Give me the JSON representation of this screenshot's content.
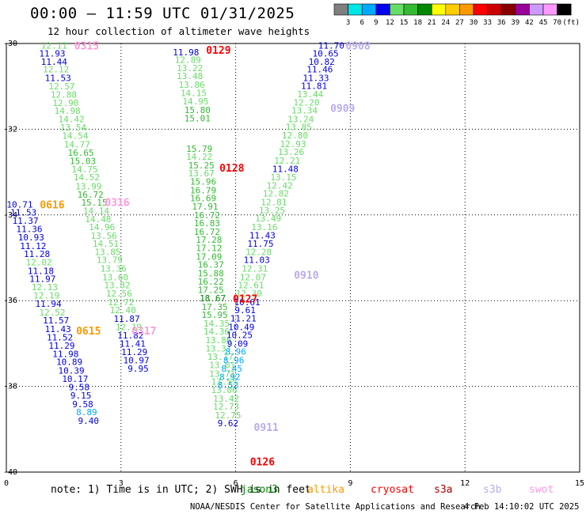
{
  "header": {
    "title": "00:00 — 11:59 UTC 01/31/2025",
    "subtitle": "12 hour collection of altimeter wave heights"
  },
  "colorbar": {
    "labels": [
      "3",
      "6",
      "9",
      "12",
      "15",
      "18",
      "21",
      "24",
      "27",
      "30",
      "33",
      "36",
      "39",
      "42",
      "45",
      "70",
      "(ft)"
    ],
    "colors": [
      "#7f7f7f",
      "#00e5e5",
      "#00aaff",
      "#0000ee",
      "#66dd66",
      "#33bb33",
      "#008800",
      "#ffff00",
      "#ffcc00",
      "#ff9900",
      "#ff0000",
      "#cc0000",
      "#880000",
      "#990099",
      "#cc99ff",
      "#ff99ff",
      "#000000"
    ]
  },
  "note": "note: 1) Time is in UTC; 2) SWH is in feet",
  "legend": [
    {
      "name": "jason3",
      "color": "#008800"
    },
    {
      "name": "altika",
      "color": "#ff9900"
    },
    {
      "name": "cryosat",
      "color": "#ff0000"
    },
    {
      "name": "s3a",
      "color": "#aa0000"
    },
    {
      "name": "s3b",
      "color": "#bbaaee"
    },
    {
      "name": "swot",
      "color": "#ff99dd"
    }
  ],
  "footer": "NOAA/NESDIS Center for Satellite Applications and Research",
  "timestamp": "4 Feb 14:10:02 UTC 2025",
  "chart_data": {
    "type": "scatter",
    "title": "00:00 — 11:59 UTC 01/31/2025",
    "xlim": [
      0,
      15
    ],
    "ylim": [
      -40,
      -30
    ],
    "x_ticks": [
      0,
      3,
      6,
      9,
      12,
      15
    ],
    "y_ticks": [
      -30,
      -32,
      -34,
      -36,
      -38,
      -40
    ],
    "y_tick_labels": [
      "-30",
      "-32",
      "-34",
      "-36",
      "-38",
      "-40"
    ],
    "grid": true,
    "color_stops": [
      {
        "max": 3,
        "color": "#7f7f7f"
      },
      {
        "max": 6,
        "color": "#00e5e5"
      },
      {
        "max": 9,
        "color": "#00aaff"
      },
      {
        "max": 12,
        "color": "#0000ee"
      },
      {
        "max": 15,
        "color": "#66dd66"
      },
      {
        "max": 18,
        "color": "#33bb33"
      },
      {
        "max": 21,
        "color": "#008800"
      }
    ],
    "track_labels": [
      {
        "text": "0315",
        "x": 2.1,
        "y": -30.05,
        "color": "#ff99dd"
      },
      {
        "text": "0129",
        "x": 5.55,
        "y": -30.15,
        "color": "#ff0000"
      },
      {
        "text": "0908",
        "x": 9.2,
        "y": -30.05,
        "color": "#bbaaee"
      },
      {
        "text": "0909",
        "x": 8.8,
        "y": -31.5,
        "color": "#bbaaee"
      },
      {
        "text": "0128",
        "x": 5.9,
        "y": -32.9,
        "color": "#ff0000"
      },
      {
        "text": "0616",
        "x": 1.2,
        "y": -33.75,
        "color": "#ff9900"
      },
      {
        "text": "0316",
        "x": 2.9,
        "y": -33.7,
        "color": "#ff99dd"
      },
      {
        "text": "0910",
        "x": 7.85,
        "y": -35.4,
        "color": "#bbaaee"
      },
      {
        "text": "0127",
        "x": 6.25,
        "y": -35.95,
        "color": "#ff0000"
      },
      {
        "text": "0615",
        "x": 2.15,
        "y": -36.7,
        "color": "#ff9900"
      },
      {
        "text": "0317",
        "x": 3.6,
        "y": -36.7,
        "color": "#ff99dd"
      },
      {
        "text": "0911",
        "x": 6.8,
        "y": -38.95,
        "color": "#bbaaee"
      },
      {
        "text": "0126",
        "x": 6.7,
        "y": -39.75,
        "color": "#ff0000"
      }
    ],
    "series": [
      {
        "track": "0315",
        "points": [
          [
            1.25,
            -30.05,
            12.11
          ],
          [
            1.2,
            -30.23,
            11.93
          ],
          [
            1.25,
            -30.42,
            11.44
          ],
          [
            1.3,
            -30.6,
            12.12
          ],
          [
            1.35,
            -30.8,
            11.53
          ],
          [
            1.45,
            -31.0,
            12.57
          ],
          [
            1.5,
            -31.19,
            12.88
          ],
          [
            1.55,
            -31.38,
            12.9
          ],
          [
            1.6,
            -31.57,
            14.98
          ],
          [
            1.7,
            -31.76,
            14.42
          ],
          [
            1.75,
            -31.96,
            13.54
          ],
          [
            1.8,
            -32.15,
            14.54
          ],
          [
            1.85,
            -32.35,
            14.77
          ],
          [
            1.95,
            -32.55,
            16.65
          ],
          [
            2.0,
            -32.74,
            15.03
          ],
          [
            2.05,
            -32.93,
            14.75
          ],
          [
            2.1,
            -33.12,
            14.52
          ],
          [
            2.15,
            -33.33,
            13.99
          ],
          [
            2.2,
            -33.52,
            16.72
          ],
          [
            2.3,
            -33.71,
            15.15
          ],
          [
            2.35,
            -33.9,
            14.14
          ],
          [
            2.4,
            -34.1,
            14.48
          ],
          [
            2.5,
            -34.28,
            14.96
          ],
          [
            2.55,
            -34.48,
            13.56
          ],
          [
            2.6,
            -34.67,
            14.51
          ],
          [
            2.65,
            -34.86,
            13.85
          ],
          [
            2.7,
            -35.05,
            13.79
          ],
          [
            2.8,
            -35.25,
            13.36
          ],
          [
            2.85,
            -35.45,
            13.6
          ],
          [
            2.9,
            -35.64,
            13.82
          ],
          [
            2.95,
            -35.83,
            12.56
          ],
          [
            3.0,
            -36.03,
            12.72
          ],
          [
            3.05,
            -36.22,
            12.4
          ],
          [
            3.15,
            -36.42,
            11.87
          ],
          [
            3.2,
            -36.61,
            12.19
          ],
          [
            3.25,
            -36.81,
            11.82
          ],
          [
            3.3,
            -37.0,
            11.41
          ],
          [
            3.35,
            -37.2,
            11.29
          ],
          [
            3.4,
            -37.39,
            10.97
          ],
          [
            3.45,
            -37.58,
            9.95
          ]
        ]
      },
      {
        "track": "0616",
        "points": [
          [
            0.35,
            -33.75,
            10.71
          ],
          [
            0.45,
            -33.94,
            11.53
          ],
          [
            0.5,
            -34.13,
            11.37
          ],
          [
            0.6,
            -34.33,
            11.36
          ],
          [
            0.65,
            -34.52,
            10.93
          ],
          [
            0.7,
            -34.72,
            11.12
          ],
          [
            0.8,
            -34.91,
            11.28
          ],
          [
            0.85,
            -35.1,
            12.02
          ],
          [
            0.9,
            -35.3,
            11.18
          ],
          [
            0.95,
            -35.49,
            11.97
          ],
          [
            1.0,
            -35.68,
            12.13
          ],
          [
            1.05,
            -35.88,
            12.19
          ],
          [
            1.1,
            -36.07,
            11.94
          ],
          [
            1.2,
            -36.27,
            12.52
          ],
          [
            1.3,
            -36.46,
            11.57
          ],
          [
            1.35,
            -36.66,
            11.43
          ],
          [
            1.4,
            -36.85,
            11.52
          ],
          [
            1.45,
            -37.05,
            11.29
          ],
          [
            1.55,
            -37.24,
            11.98
          ],
          [
            1.65,
            -37.43,
            10.89
          ],
          [
            1.7,
            -37.63,
            10.39
          ],
          [
            1.8,
            -37.82,
            10.17
          ],
          [
            1.9,
            -38.02,
            9.58
          ],
          [
            1.95,
            -38.21,
            9.15
          ],
          [
            2.0,
            -38.41,
            9.58
          ],
          [
            2.1,
            -38.6,
            8.89
          ],
          [
            2.15,
            -38.8,
            9.4
          ]
        ]
      },
      {
        "track": "0129",
        "points": [
          [
            4.7,
            -30.2,
            11.98
          ],
          [
            4.75,
            -30.38,
            12.89
          ],
          [
            4.8,
            -30.57,
            13.22
          ],
          [
            4.8,
            -30.76,
            13.48
          ],
          [
            4.85,
            -30.96,
            13.86
          ],
          [
            4.9,
            -31.15,
            14.15
          ],
          [
            4.95,
            -31.35,
            14.95
          ],
          [
            5.0,
            -31.55,
            15.8
          ],
          [
            5.0,
            -31.74,
            15.01
          ],
          [
            5.05,
            -32.45,
            15.79
          ],
          [
            5.05,
            -32.64,
            14.22
          ],
          [
            5.1,
            -32.84,
            15.25
          ],
          [
            5.1,
            -33.03,
            13.67
          ],
          [
            5.15,
            -33.22,
            15.96
          ],
          [
            5.15,
            -33.42,
            16.79
          ],
          [
            5.15,
            -33.61,
            16.69
          ],
          [
            5.2,
            -33.8,
            17.91
          ],
          [
            5.25,
            -34.0,
            16.72
          ],
          [
            5.25,
            -34.19,
            16.83
          ],
          [
            5.25,
            -34.39,
            16.72
          ],
          [
            5.3,
            -34.58,
            17.28
          ],
          [
            5.3,
            -34.77,
            17.12
          ],
          [
            5.3,
            -34.97,
            17.09
          ],
          [
            5.35,
            -35.16,
            16.37
          ],
          [
            5.35,
            -35.36,
            15.88
          ],
          [
            5.35,
            -35.55,
            16.22
          ],
          [
            5.35,
            -35.75,
            17.25
          ],
          [
            5.4,
            -35.94,
            18.67
          ],
          [
            5.45,
            -36.14,
            17.35
          ],
          [
            5.45,
            -36.33,
            15.95
          ],
          [
            5.5,
            -36.53,
            14.35
          ],
          [
            5.5,
            -36.72,
            14.36
          ],
          [
            5.55,
            -36.92,
            13.86
          ],
          [
            5.55,
            -37.11,
            13.31
          ],
          [
            5.6,
            -37.31,
            13.17
          ],
          [
            5.65,
            -37.5,
            13.01
          ],
          [
            5.65,
            -37.7,
            13.71
          ],
          [
            5.7,
            -37.89,
            13.55
          ],
          [
            5.7,
            -38.08,
            13.06
          ],
          [
            5.75,
            -38.28,
            13.42
          ],
          [
            5.75,
            -38.47,
            12.73
          ],
          [
            5.8,
            -38.67,
            12.75
          ],
          [
            5.8,
            -38.86,
            9.62
          ]
        ]
      },
      {
        "track": "0908",
        "points": [
          [
            8.5,
            -30.05,
            11.7
          ],
          [
            8.35,
            -30.23,
            10.65
          ],
          [
            8.25,
            -30.42,
            10.82
          ],
          [
            8.2,
            -30.6,
            11.46
          ],
          [
            8.1,
            -30.8,
            11.33
          ],
          [
            8.05,
            -30.99,
            11.81
          ],
          [
            7.95,
            -31.18,
            13.44
          ],
          [
            7.85,
            -31.37,
            12.2
          ],
          [
            7.8,
            -31.56,
            13.34
          ],
          [
            7.7,
            -31.76,
            13.24
          ],
          [
            7.65,
            -31.95,
            13.85
          ],
          [
            7.55,
            -32.14,
            12.8
          ],
          [
            7.5,
            -32.34,
            12.93
          ],
          [
            7.45,
            -32.53,
            13.26
          ],
          [
            7.35,
            -32.73,
            12.21
          ],
          [
            7.3,
            -32.92,
            11.48
          ],
          [
            7.25,
            -33.12,
            13.15
          ],
          [
            7.15,
            -33.31,
            12.42
          ],
          [
            7.05,
            -33.5,
            12.82
          ],
          [
            7.0,
            -33.7,
            12.81
          ],
          [
            6.95,
            -33.89,
            13.25
          ],
          [
            6.85,
            -34.08,
            13.49
          ],
          [
            6.75,
            -34.28,
            13.16
          ],
          [
            6.7,
            -34.47,
            11.43
          ],
          [
            6.65,
            -34.67,
            11.75
          ],
          [
            6.6,
            -34.86,
            12.28
          ],
          [
            6.55,
            -35.05,
            11.03
          ],
          [
            6.5,
            -35.25,
            12.31
          ],
          [
            6.45,
            -35.45,
            12.07
          ],
          [
            6.4,
            -35.64,
            12.61
          ],
          [
            6.35,
            -35.83,
            12.3
          ],
          [
            6.3,
            -36.03,
            10.61
          ],
          [
            6.25,
            -36.22,
            9.61
          ],
          [
            6.2,
            -36.41,
            11.21
          ],
          [
            6.15,
            -36.61,
            10.49
          ],
          [
            6.1,
            -36.8,
            10.25
          ],
          [
            6.05,
            -37.0,
            9.09
          ],
          [
            6.0,
            -37.19,
            8.96
          ],
          [
            5.95,
            -37.39,
            8.96
          ],
          [
            5.9,
            -37.58,
            8.45
          ],
          [
            5.85,
            -37.78,
            8.92
          ],
          [
            5.8,
            -37.97,
            8.52
          ]
        ]
      }
    ]
  }
}
